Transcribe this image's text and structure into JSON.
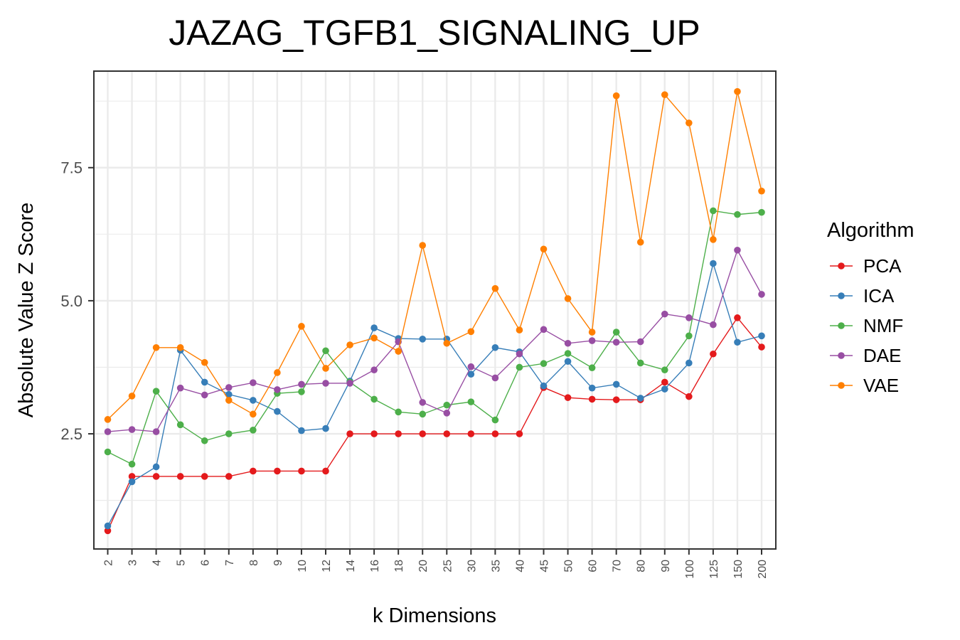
{
  "chart_data": {
    "type": "line",
    "title": "JAZAG_TGFB1_SIGNALING_UP",
    "xlabel": "k Dimensions",
    "ylabel": "Absolute Value Z Score",
    "categories": [
      "2",
      "3",
      "4",
      "5",
      "6",
      "7",
      "8",
      "9",
      "10",
      "12",
      "14",
      "16",
      "18",
      "20",
      "25",
      "30",
      "35",
      "40",
      "45",
      "50",
      "60",
      "70",
      "80",
      "90",
      "100",
      "125",
      "150",
      "200"
    ],
    "y_ticks": [
      "2.5",
      "5.0",
      "7.5"
    ],
    "ylim": [
      0.35,
      9.3
    ],
    "grid": true,
    "legend": {
      "title": "Algorithm",
      "placement": "right"
    },
    "series": [
      {
        "name": "PCA",
        "color": "#E41A1C",
        "values": [
          0.68,
          1.7,
          1.7,
          1.7,
          1.7,
          1.7,
          1.8,
          1.8,
          1.8,
          1.8,
          2.5,
          2.5,
          2.5,
          2.5,
          2.5,
          2.5,
          2.5,
          2.5,
          3.37,
          3.18,
          3.15,
          3.14,
          3.14,
          3.47,
          3.2,
          4.0,
          4.68,
          4.13
        ]
      },
      {
        "name": "ICA",
        "color": "#377EB8",
        "values": [
          0.77,
          1.6,
          1.88,
          4.07,
          3.47,
          3.24,
          3.13,
          2.92,
          2.56,
          2.6,
          3.49,
          4.49,
          4.29,
          4.28,
          4.28,
          3.62,
          4.12,
          4.04,
          3.4,
          3.86,
          3.36,
          3.43,
          3.17,
          3.34,
          3.83,
          5.7,
          4.22,
          4.34
        ]
      },
      {
        "name": "NMF",
        "color": "#4DAF4A",
        "values": [
          2.16,
          1.93,
          3.3,
          2.67,
          2.37,
          2.5,
          2.57,
          3.26,
          3.29,
          4.06,
          3.47,
          3.15,
          2.91,
          2.87,
          3.04,
          3.1,
          2.76,
          3.75,
          3.82,
          4.01,
          3.74,
          4.41,
          3.83,
          3.7,
          4.34,
          6.69,
          6.62,
          6.66
        ]
      },
      {
        "name": "DAE",
        "color": "#984EA3",
        "values": [
          2.54,
          2.58,
          2.54,
          3.36,
          3.23,
          3.37,
          3.46,
          3.33,
          3.43,
          3.45,
          3.45,
          3.7,
          4.23,
          3.09,
          2.89,
          3.76,
          3.55,
          4.0,
          4.46,
          4.2,
          4.25,
          4.22,
          4.23,
          4.75,
          4.68,
          4.55,
          5.95,
          5.12
        ]
      },
      {
        "name": "VAE",
        "color": "#FF7F00",
        "values": [
          2.77,
          3.21,
          4.12,
          4.12,
          3.84,
          3.13,
          2.87,
          3.65,
          4.52,
          3.73,
          4.17,
          4.3,
          4.05,
          6.04,
          4.2,
          4.42,
          5.23,
          4.45,
          5.97,
          5.04,
          4.41,
          8.85,
          6.1,
          8.87,
          8.34,
          6.15,
          8.93,
          7.06
        ]
      }
    ]
  }
}
